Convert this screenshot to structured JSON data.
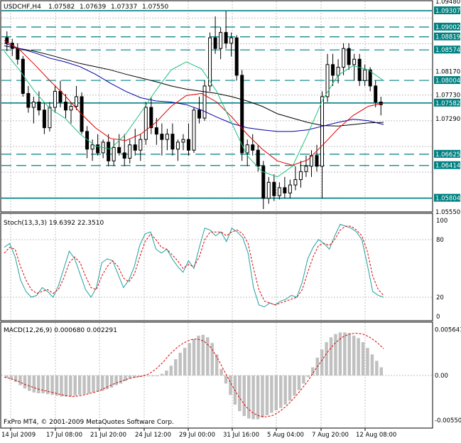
{
  "chart_data": [
    {
      "type": "line",
      "panel": "price",
      "symbol": "USDCHF,H4",
      "header_values": [
        "1.07582",
        "1.07639",
        "1.07337",
        "1.07550"
      ],
      "ylim": [
        1.0556,
        1.0948
      ],
      "y_ticks": [
        "1.09480",
        "1.09307",
        "1.09002",
        "1.08819",
        "1.08574",
        "1.08170",
        "1.07730",
        "1.07582",
        "1.07290",
        "1.06625",
        "1.06414",
        "1.05804",
        "1.05550"
      ],
      "horizontal_levels": [
        1.09307,
        1.09002,
        1.08819,
        1.08574,
        1.08004,
        1.07582,
        1.06625,
        1.06414,
        1.05804
      ],
      "solid_levels": [
        1.09307,
        1.07582,
        1.05804
      ],
      "highlighted_labels": [
        "1.09307",
        "1.09002",
        "1.08819",
        "1.08574",
        "1.08004",
        "1.07582",
        "1.06625",
        "1.06414",
        "1.05804"
      ],
      "bars_approx": [
        [
          1.088,
          1.0892,
          1.0855,
          1.087
        ],
        [
          1.087,
          1.0878,
          1.0846,
          1.086
        ],
        [
          1.086,
          1.087,
          1.083,
          1.084
        ],
        [
          1.084,
          1.0846,
          1.077,
          1.0776
        ],
        [
          1.0776,
          1.079,
          1.074,
          1.075
        ],
        [
          1.075,
          1.077,
          1.072,
          1.076
        ],
        [
          1.076,
          1.078,
          1.0735,
          1.0745
        ],
        [
          1.0745,
          1.076,
          1.07,
          1.0712
        ],
        [
          1.0712,
          1.076,
          1.0705,
          1.075
        ],
        [
          1.075,
          1.079,
          1.074,
          1.078
        ],
        [
          1.078,
          1.08,
          1.075,
          1.076
        ],
        [
          1.076,
          1.0775,
          1.073,
          1.0745
        ],
        [
          1.0745,
          1.076,
          1.072,
          1.0752
        ],
        [
          1.0752,
          1.079,
          1.0745,
          1.077
        ],
        [
          1.077,
          1.0778,
          1.07,
          1.0705
        ],
        [
          1.0705,
          1.0715,
          1.0655,
          1.0672
        ],
        [
          1.0672,
          1.069,
          1.065,
          1.068
        ],
        [
          1.068,
          1.07,
          1.066,
          1.0665
        ],
        [
          1.0665,
          1.069,
          1.0655,
          1.0685
        ],
        [
          1.0685,
          1.07,
          1.064,
          1.065
        ],
        [
          1.065,
          1.069,
          1.064,
          1.0675
        ],
        [
          1.0675,
          1.07,
          1.066,
          1.0665
        ],
        [
          1.0665,
          1.07,
          1.064,
          1.0655
        ],
        [
          1.0655,
          1.069,
          1.0645,
          1.068
        ],
        [
          1.068,
          1.071,
          1.066,
          1.067
        ],
        [
          1.067,
          1.07,
          1.065,
          1.069
        ],
        [
          1.069,
          1.076,
          1.068,
          1.075
        ],
        [
          1.075,
          1.077,
          1.07,
          1.0712
        ],
        [
          1.0712,
          1.073,
          1.068,
          1.07
        ],
        [
          1.07,
          1.072,
          1.066,
          1.069
        ],
        [
          1.069,
          1.071,
          1.067,
          1.07
        ],
        [
          1.07,
          1.072,
          1.066,
          1.0672
        ],
        [
          1.0672,
          1.069,
          1.065,
          1.0685
        ],
        [
          1.0685,
          1.07,
          1.067,
          1.069
        ],
        [
          1.069,
          1.072,
          1.066,
          1.067
        ],
        [
          1.067,
          1.075,
          1.0665,
          1.0745
        ],
        [
          1.0745,
          1.077,
          1.072,
          1.073
        ],
        [
          1.073,
          1.08,
          1.0725,
          1.079
        ],
        [
          1.079,
          1.089,
          1.078,
          1.088
        ],
        [
          1.088,
          1.092,
          1.085,
          1.086
        ],
        [
          1.086,
          1.09,
          1.084,
          1.089
        ],
        [
          1.089,
          1.093,
          1.086,
          1.087
        ],
        [
          1.087,
          1.089,
          1.0845,
          1.088
        ],
        [
          1.088,
          1.0885,
          1.08,
          1.081
        ],
        [
          1.081,
          1.082,
          1.065,
          1.0665
        ],
        [
          1.0665,
          1.069,
          1.064,
          1.068
        ],
        [
          1.068,
          1.07,
          1.066,
          1.067
        ],
        [
          1.067,
          1.068,
          1.063,
          1.064
        ],
        [
          1.064,
          1.065,
          1.056,
          1.058
        ],
        [
          1.058,
          1.062,
          1.057,
          1.061
        ],
        [
          1.061,
          1.0625,
          1.0575,
          1.0585
        ],
        [
          1.0585,
          1.061,
          1.0578,
          1.06
        ],
        [
          1.06,
          1.062,
          1.058,
          1.059
        ],
        [
          1.059,
          1.0615,
          1.058,
          1.0605
        ],
        [
          1.0605,
          1.064,
          1.0595,
          1.0615
        ],
        [
          1.0615,
          1.065,
          1.06,
          1.063
        ],
        [
          1.063,
          1.066,
          1.062,
          1.064
        ],
        [
          1.064,
          1.067,
          1.062,
          1.066
        ],
        [
          1.066,
          1.068,
          1.063,
          1.064
        ],
        [
          1.064,
          1.078,
          1.058,
          1.077
        ],
        [
          1.077,
          1.085,
          1.076,
          1.083
        ],
        [
          1.083,
          1.085,
          1.079,
          1.081
        ],
        [
          1.081,
          1.084,
          1.0795,
          1.0825
        ],
        [
          1.0825,
          1.087,
          1.081,
          1.086
        ],
        [
          1.086,
          1.087,
          1.082,
          1.083
        ],
        [
          1.083,
          1.085,
          1.08,
          1.084
        ],
        [
          1.084,
          1.085,
          1.079,
          1.08
        ],
        [
          1.08,
          1.083,
          1.079,
          1.082
        ],
        [
          1.082,
          1.0825,
          1.078,
          1.079
        ],
        [
          1.079,
          1.08,
          1.075,
          1.076
        ],
        [
          1.076,
          1.077,
          1.0735,
          1.0755
        ]
      ],
      "series": [
        {
          "color": "#000000",
          "values": [
            1.0865,
            1.086,
            1.0855,
            1.0848,
            1.084,
            1.0832,
            1.0826,
            1.082,
            1.0812,
            1.0805,
            1.0798,
            1.079,
            1.0784,
            1.078,
            1.0776,
            1.077,
            1.0762,
            1.0752,
            1.0738,
            1.073,
            1.0722,
            1.0716,
            1.0715,
            1.0718,
            1.0721,
            1.0722
          ]
        },
        {
          "color": "#0000a0",
          "values": [
            1.087,
            1.086,
            1.0852,
            1.0842,
            1.0835,
            1.0826,
            1.0812,
            1.0795,
            1.078,
            1.0768,
            1.0762,
            1.076,
            1.0755,
            1.0745,
            1.0732,
            1.072,
            1.0712,
            1.0708,
            1.0705,
            1.0705,
            1.0708,
            1.0715,
            1.0722,
            1.0728,
            1.0725,
            1.0718
          ]
        },
        {
          "color": "#e00000",
          "values": [
            1.0875,
            1.0858,
            1.083,
            1.08,
            1.0772,
            1.074,
            1.0712,
            1.0692,
            1.0688,
            1.07,
            1.0722,
            1.0752,
            1.0772,
            1.0776,
            1.076,
            1.0732,
            1.07,
            1.0672,
            1.065,
            1.0642,
            1.0652,
            1.068,
            1.071,
            1.0735,
            1.0752,
            1.0758
          ]
        },
        {
          "color": "#20c080",
          "values": [
            1.0855,
            1.082,
            1.078,
            1.0748,
            1.073,
            1.07,
            1.0678,
            1.0672,
            1.07,
            1.074,
            1.0782,
            1.082,
            1.0835,
            1.0822,
            1.078,
            1.072,
            1.066,
            1.063,
            1.062,
            1.064,
            1.07,
            1.0765,
            1.081,
            1.0828,
            1.082,
            1.08
          ]
        }
      ]
    },
    {
      "type": "line",
      "panel": "stochastic",
      "label": "Stoch(13,3,3) 19.6392 22.3510",
      "ylim": [
        0,
        100
      ],
      "y_ticks": [
        "100",
        "80",
        "20",
        "0"
      ],
      "series": [
        {
          "name": "main",
          "color": "#20a0a0",
          "values": [
            72,
            76,
            62,
            38,
            26,
            20,
            22,
            30,
            26,
            20,
            32,
            50,
            68,
            60,
            44,
            28,
            20,
            30,
            56,
            60,
            58,
            44,
            30,
            38,
            52,
            74,
            86,
            88,
            70,
            66,
            70,
            60,
            52,
            46,
            58,
            50,
            72,
            92,
            90,
            84,
            88,
            78,
            92,
            88,
            82,
            66,
            30,
            12,
            10,
            14,
            12,
            16,
            18,
            22,
            20,
            36,
            60,
            72,
            80,
            76,
            70,
            84,
            96,
            94,
            92,
            88,
            80,
            54,
            26,
            22,
            20
          ]
        },
        {
          "name": "signal",
          "color": "#e00000",
          "values": [
            66,
            72,
            70,
            52,
            38,
            28,
            24,
            26,
            28,
            24,
            28,
            40,
            56,
            62,
            56,
            42,
            30,
            28,
            42,
            52,
            58,
            52,
            40,
            36,
            44,
            62,
            78,
            86,
            80,
            72,
            70,
            64,
            58,
            50,
            54,
            52,
            62,
            80,
            88,
            88,
            88,
            84,
            88,
            90,
            86,
            76,
            50,
            28,
            16,
            14,
            12,
            14,
            16,
            18,
            20,
            28,
            46,
            62,
            74,
            76,
            74,
            80,
            90,
            94,
            94,
            90,
            84,
            68,
            42,
            28,
            22
          ]
        }
      ]
    },
    {
      "type": "bar",
      "panel": "macd",
      "label": "MACD(12,26,9) 0.000680 0.002291",
      "ylim": [
        -0.00578,
        0.00578
      ],
      "y_ticks": [
        "0.005641",
        "0.00",
        "-0.005500"
      ],
      "histogram": [
        -0.0003,
        -0.0005,
        -0.0008,
        -0.0012,
        -0.0016,
        -0.0019,
        -0.0021,
        -0.0022,
        -0.0022,
        -0.0023,
        -0.0024,
        -0.0025,
        -0.0026,
        -0.0026,
        -0.0026,
        -0.0025,
        -0.0024,
        -0.0023,
        -0.0022,
        -0.0021,
        -0.002,
        -0.0019,
        -0.0017,
        -0.0015,
        -0.0012,
        -0.001,
        -0.0007,
        -0.0004,
        -0.0003,
        -0.0002,
        -0.0001,
        -0.0001,
        -0.0001,
        -0.0001,
        0.0002,
        0.0006,
        0.0012,
        0.002,
        0.0028,
        0.0034,
        0.004,
        0.0045,
        0.0049,
        0.005,
        0.0047,
        0.004,
        0.0026,
        0.0008,
        -0.001,
        -0.0024,
        -0.0036,
        -0.0044,
        -0.005,
        -0.0053,
        -0.0054,
        -0.0054,
        -0.0052,
        -0.0049,
        -0.0046,
        -0.0043,
        -0.004,
        -0.0036,
        -0.0031,
        -0.0025,
        -0.0018,
        -0.001,
        -0.0002,
        0.001,
        0.0022,
        0.0032,
        0.0041,
        0.0047,
        0.0051,
        0.0053,
        0.0053,
        0.0052,
        0.0049,
        0.0046,
        0.0041,
        0.0034,
        0.0026,
        0.0018,
        0.001
      ],
      "signal": [
        -0.0002,
        -0.0004,
        -0.0007,
        -0.0011,
        -0.0014,
        -0.0017,
        -0.0019,
        -0.0021,
        -0.0023,
        -0.0025,
        -0.0026,
        -0.0025,
        -0.0023,
        -0.0021,
        -0.0018,
        -0.0014,
        -0.001,
        -0.0007,
        -0.0004,
        -0.0002,
        -0.0001,
        0.0002,
        0.0008,
        0.0016,
        0.0026,
        0.0034,
        0.004,
        0.0044,
        0.0045,
        0.0042,
        0.0034,
        0.002,
        0.0004,
        -0.0012,
        -0.0026,
        -0.0038,
        -0.0046,
        -0.005,
        -0.0051,
        -0.0049,
        -0.0044,
        -0.0037,
        -0.0028,
        -0.0018,
        -0.0007,
        0.0006,
        0.0018,
        0.003,
        0.004,
        0.0047,
        0.0051,
        0.0052,
        0.0051,
        0.0047,
        0.0041,
        0.0033
      ]
    }
  ],
  "x_labels": [
    "14 Jul 2009",
    "17 Jul 08:00",
    "21 Jul 20:00",
    "24 Jul 12:00",
    "29 Jul 00:00",
    "31 Jul 16:00",
    "5 Aug 04:00",
    "7 Aug 20:00",
    "12 Aug 08:00"
  ],
  "copyright": "FxPro MT4, © 2001-2009 MetaQuotes Software Corp.",
  "colors": {
    "level_line": "#008080",
    "highlight_label_bg": "#008080",
    "grid": "#c0c0c0",
    "candle": "#000000"
  }
}
